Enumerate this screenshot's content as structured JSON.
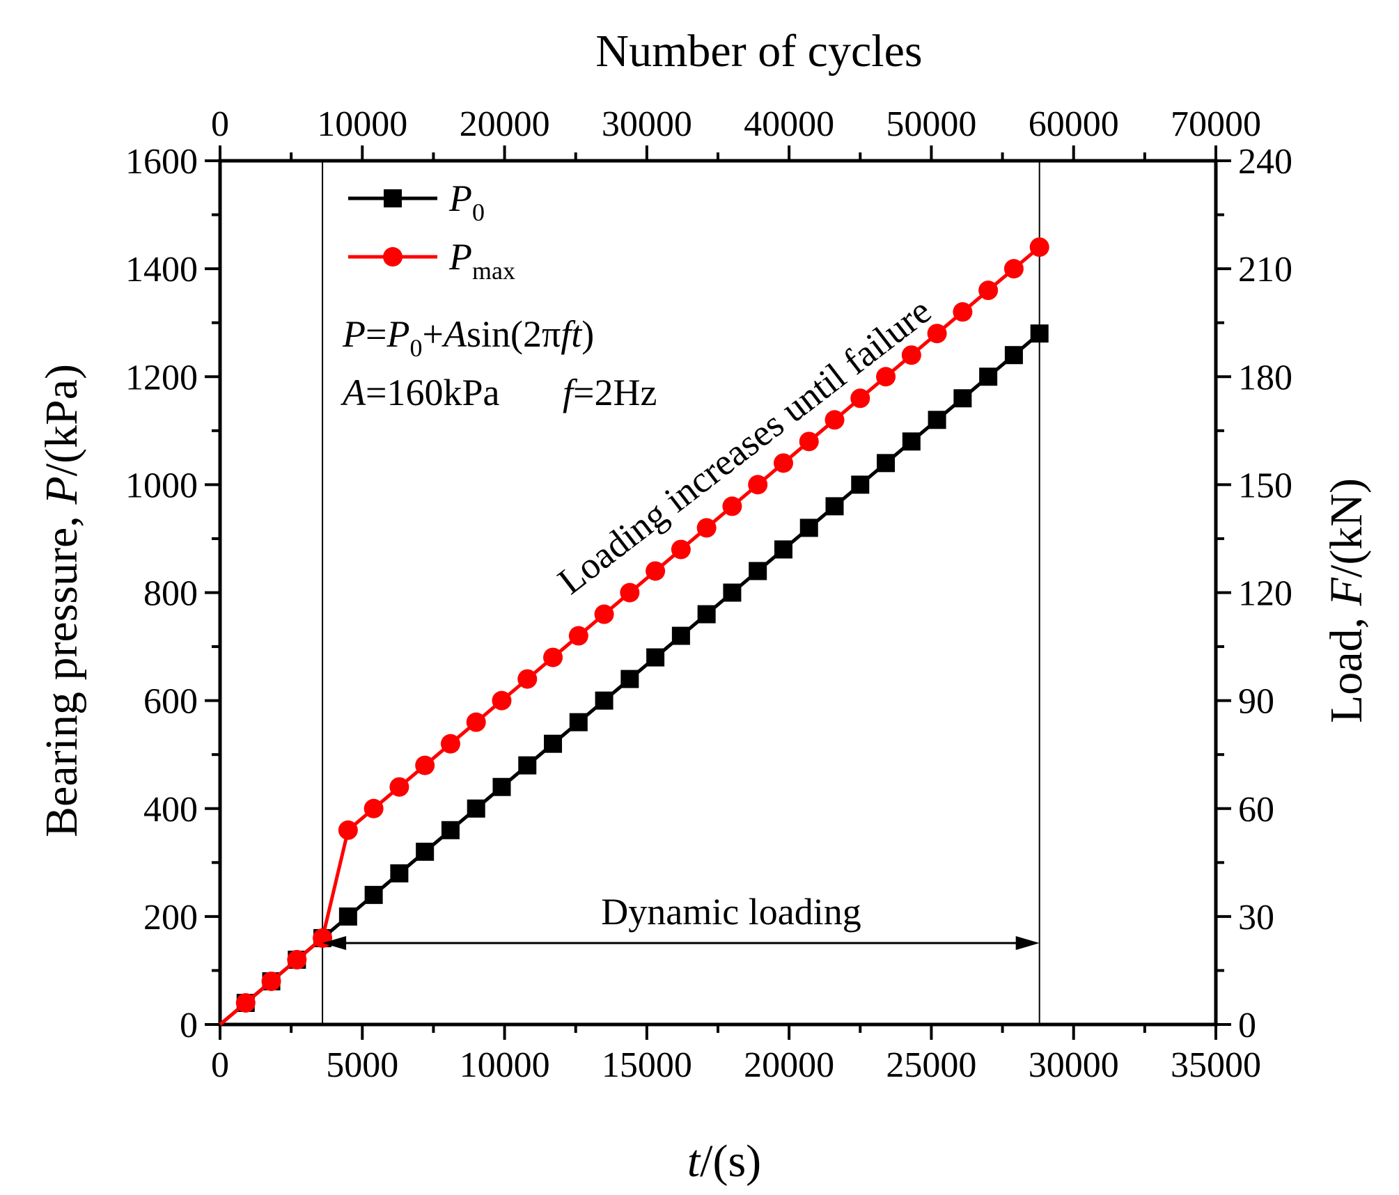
{
  "chart_data": {
    "type": "line",
    "xlabel": {
      "italic": "t",
      "rest": "/(s)"
    },
    "ylabel_left": {
      "pre": "Bearing pressure, ",
      "italic": "P",
      "rest": "/(kPa)"
    },
    "ylabel_right": {
      "pre": "Load, ",
      "italic": "F",
      "rest": "/(kN)"
    },
    "x2label": "Number of cycles",
    "xlim": [
      0,
      35000
    ],
    "ylim": [
      0,
      1600
    ],
    "x2lim": [
      0,
      70000
    ],
    "y2lim": [
      0,
      240
    ],
    "x_ticks": [
      "0",
      "5000",
      "10000",
      "15000",
      "20000",
      "25000",
      "30000",
      "35000"
    ],
    "y_ticks": [
      "0",
      "200",
      "400",
      "600",
      "800",
      "1000",
      "1200",
      "1400",
      "1600"
    ],
    "x2_ticks": [
      "0",
      "10000",
      "20000",
      "30000",
      "40000",
      "50000",
      "60000",
      "70000"
    ],
    "y2_ticks": [
      "0",
      "30",
      "60",
      "90",
      "120",
      "150",
      "180",
      "210",
      "240"
    ],
    "series": [
      {
        "name": "P0",
        "legend": {
          "main": "P",
          "sub": "0"
        },
        "color": "#000000",
        "marker": "square",
        "x": [
          0,
          900,
          1800,
          2700,
          3600,
          4500,
          5400,
          6300,
          7200,
          8100,
          9000,
          9900,
          10800,
          11700,
          12600,
          13500,
          14400,
          15300,
          16200,
          17100,
          18000,
          18900,
          19800,
          20700,
          21600,
          22500,
          23400,
          24300,
          25200,
          26100,
          27000,
          27900,
          28800
        ],
        "values": [
          0,
          40,
          80,
          120,
          160,
          200,
          240,
          280,
          320,
          360,
          400,
          440,
          480,
          520,
          560,
          600,
          640,
          680,
          720,
          760,
          800,
          840,
          880,
          920,
          960,
          1000,
          1040,
          1080,
          1120,
          1160,
          1200,
          1240,
          1280
        ]
      },
      {
        "name": "Pmax",
        "legend": {
          "main": "P",
          "sub": "max"
        },
        "color": "#ff0000",
        "marker": "circle",
        "x": [
          0,
          900,
          1800,
          2700,
          3600,
          4500,
          5400,
          6300,
          7200,
          8100,
          9000,
          9900,
          10800,
          11700,
          12600,
          13500,
          14400,
          15300,
          16200,
          17100,
          18000,
          18900,
          19800,
          20700,
          21600,
          22500,
          23400,
          24300,
          25200,
          26100,
          27000,
          27900,
          28800
        ],
        "values": [
          0,
          40,
          80,
          120,
          160,
          360,
          400,
          440,
          480,
          520,
          560,
          600,
          640,
          680,
          720,
          760,
          800,
          840,
          880,
          920,
          960,
          1000,
          1040,
          1080,
          1120,
          1160,
          1200,
          1240,
          1280,
          1320,
          1360,
          1400,
          1440
        ]
      }
    ],
    "vlines": [
      3600,
      28800
    ],
    "annotations": {
      "equation": "P=P0+Asin(2πft)",
      "params_a": "A=160kPa",
      "params_f": "f=2Hz",
      "trend": "Loading increases until failure",
      "span": "Dynamic loading"
    }
  }
}
